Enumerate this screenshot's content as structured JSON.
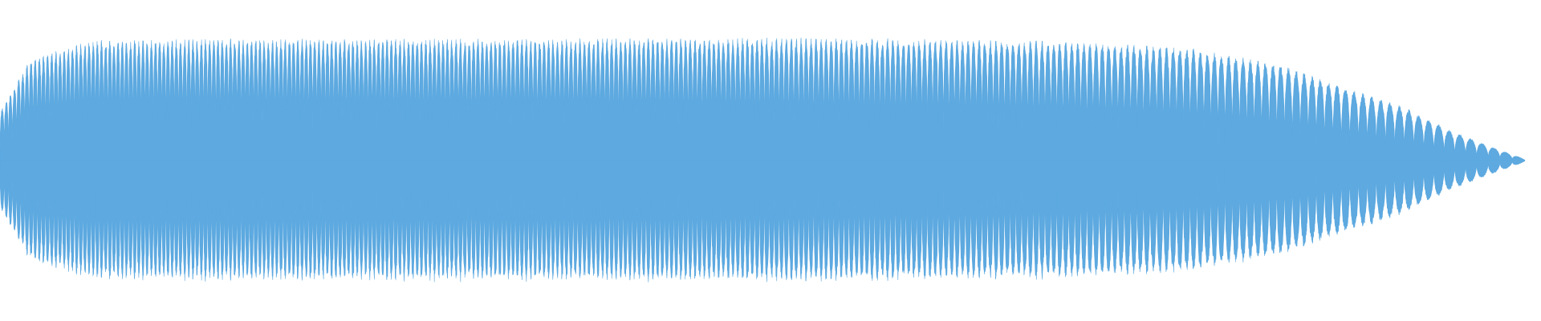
{
  "waveform": {
    "color": "#5DA9E0",
    "background": "#FFFFFF",
    "cycle_count": 145,
    "envelope": {
      "description_points": [
        {
          "t": 0.0,
          "amp": 0.38
        },
        {
          "t": 0.02,
          "amp": 0.8
        },
        {
          "t": 0.06,
          "amp": 0.94
        },
        {
          "t": 0.15,
          "amp": 0.95
        },
        {
          "t": 0.35,
          "amp": 0.95
        },
        {
          "t": 0.55,
          "amp": 0.96
        },
        {
          "t": 0.7,
          "amp": 0.93
        },
        {
          "t": 0.78,
          "amp": 0.88
        },
        {
          "t": 0.84,
          "amp": 0.75
        },
        {
          "t": 0.88,
          "amp": 0.58
        },
        {
          "t": 0.92,
          "amp": 0.42
        },
        {
          "t": 0.95,
          "amp": 0.24
        },
        {
          "t": 0.975,
          "amp": 0.12
        },
        {
          "t": 1.0,
          "amp": 0.01
        }
      ]
    }
  }
}
